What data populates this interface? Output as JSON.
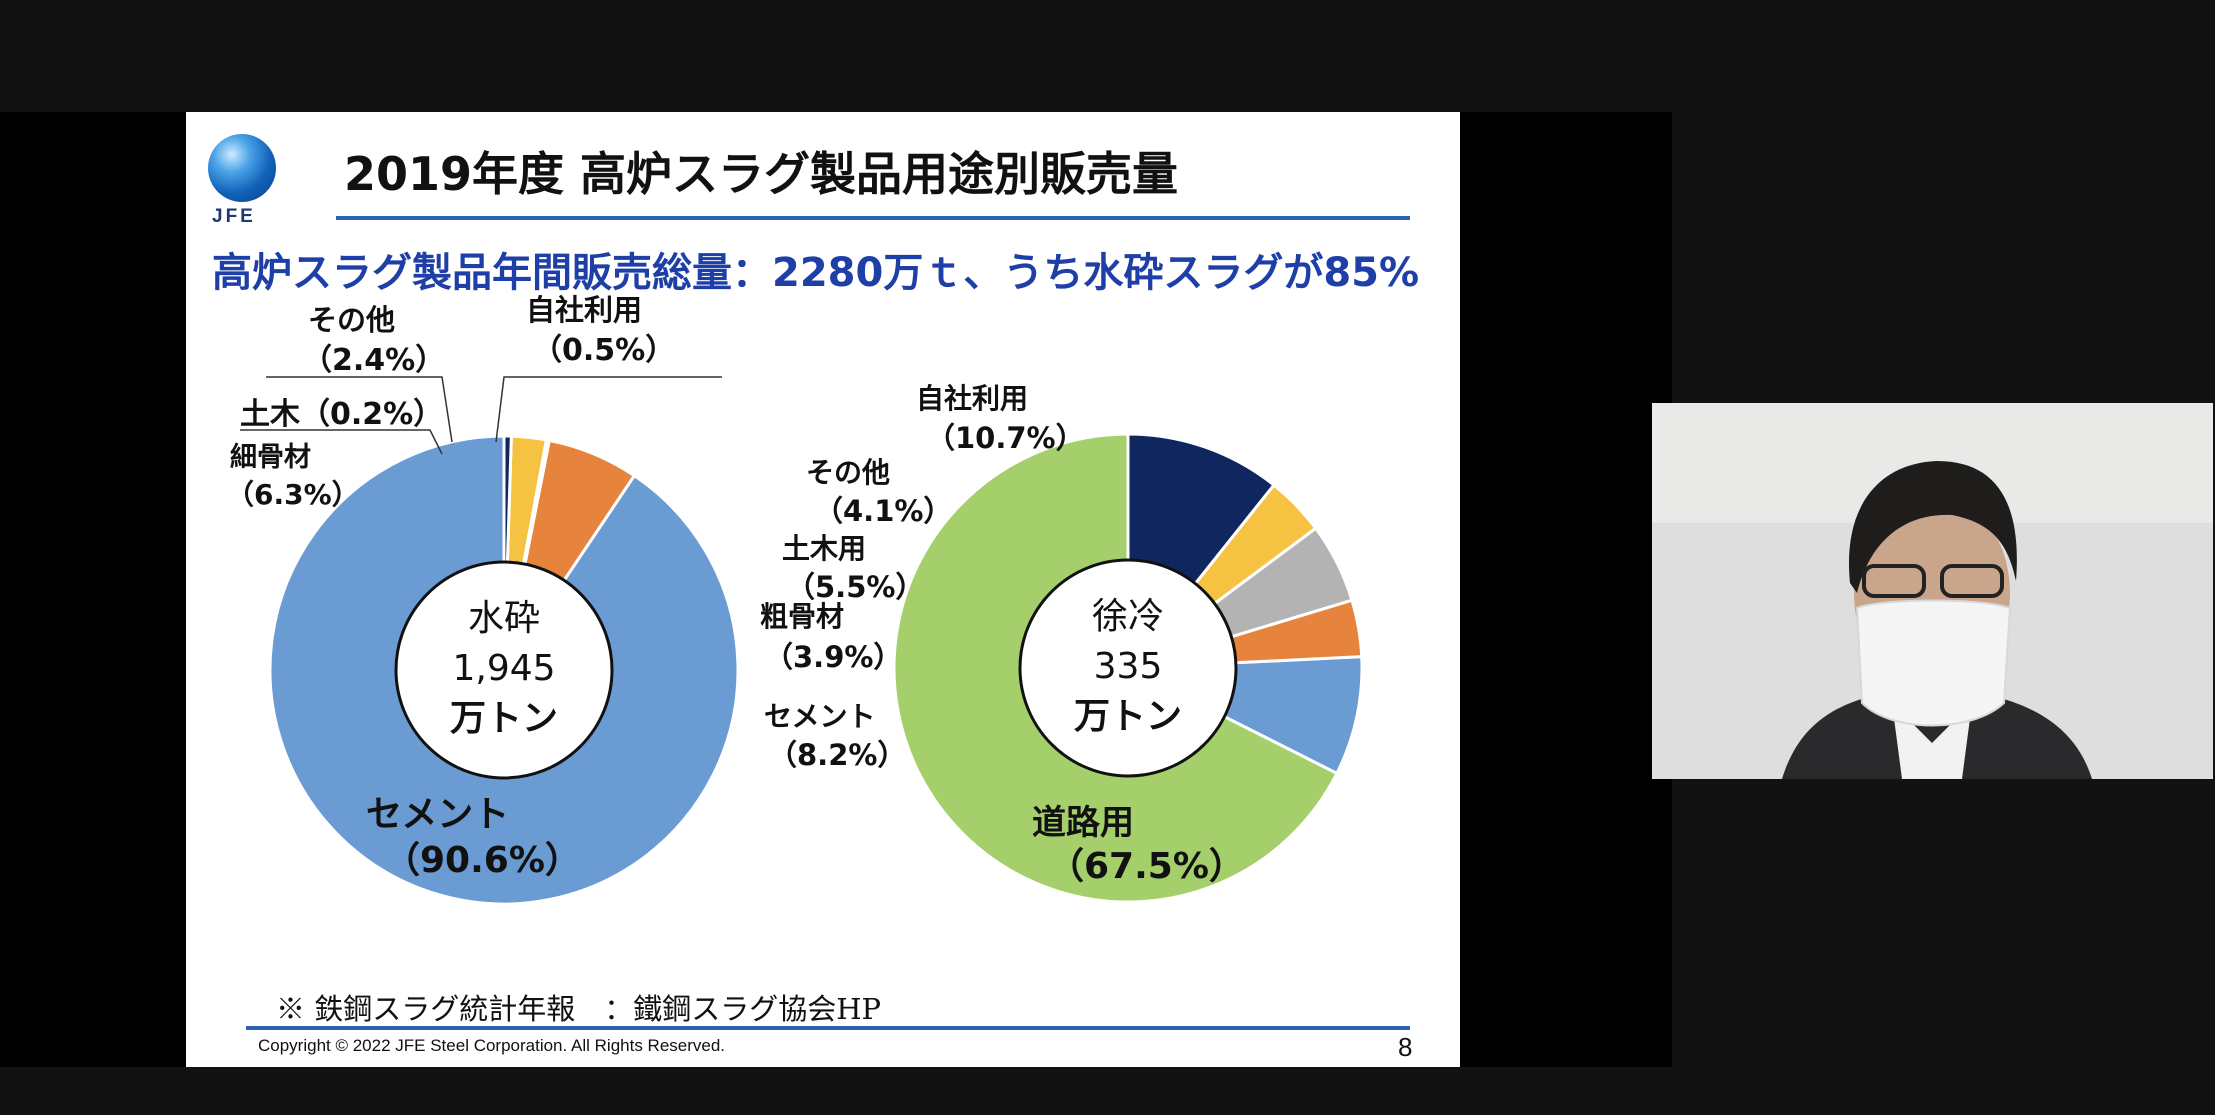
{
  "slide": {
    "logo_text": "JFE",
    "title": "2019年度  高炉スラグ製品用途別販売量",
    "subtitle": "高炉スラグ製品年間販売総量：2280万ｔ、うち水砕スラグが85%",
    "footnote": "※  鉄鋼スラグ統計年報　：鐵鋼スラグ協会HP",
    "copyright": "Copyright © 2022 JFE Steel Corporation. All Rights Reserved.",
    "page_number": "8"
  },
  "chart_data": [
    {
      "type": "pie",
      "donut": true,
      "center_label": [
        "水砕",
        "1,945",
        "万トン"
      ],
      "slices": [
        {
          "label": "セメント",
          "pct_text": "（90.6%）",
          "value": 90.6,
          "color": "#6a9bd3"
        },
        {
          "label": "細骨材",
          "pct_text": "（6.3%）",
          "value": 6.3,
          "color": "#e6843e"
        },
        {
          "label": "土木（0.2%）",
          "pct_text": "",
          "value": 0.2,
          "color": "#a9a9a9"
        },
        {
          "label": "その他",
          "pct_text": "（2.4%）",
          "value": 2.4,
          "color": "#f5c242"
        },
        {
          "label": "自社利用",
          "pct_text": "（0.5%）",
          "value": 0.5,
          "color": "#10265f"
        }
      ]
    },
    {
      "type": "pie",
      "donut": true,
      "center_label": [
        "徐冷",
        "335",
        "万トン"
      ],
      "slices": [
        {
          "label": "道路用",
          "pct_text": "（67.5%）",
          "value": 67.5,
          "color": "#a5cf6b"
        },
        {
          "label": "セメント",
          "pct_text": "（8.2%）",
          "value": 8.2,
          "color": "#6a9bd3"
        },
        {
          "label": "粗骨材",
          "pct_text": "（3.9%）",
          "value": 3.9,
          "color": "#e6843e"
        },
        {
          "label": "土木用",
          "pct_text": "（5.5%）",
          "value": 5.5,
          "color": "#b3b3b3"
        },
        {
          "label": "その他",
          "pct_text": "（4.1%）",
          "value": 4.1,
          "color": "#f5c242"
        },
        {
          "label": "自社利用",
          "pct_text": "（10.7%）",
          "value": 10.7,
          "color": "#10265f"
        }
      ]
    }
  ]
}
